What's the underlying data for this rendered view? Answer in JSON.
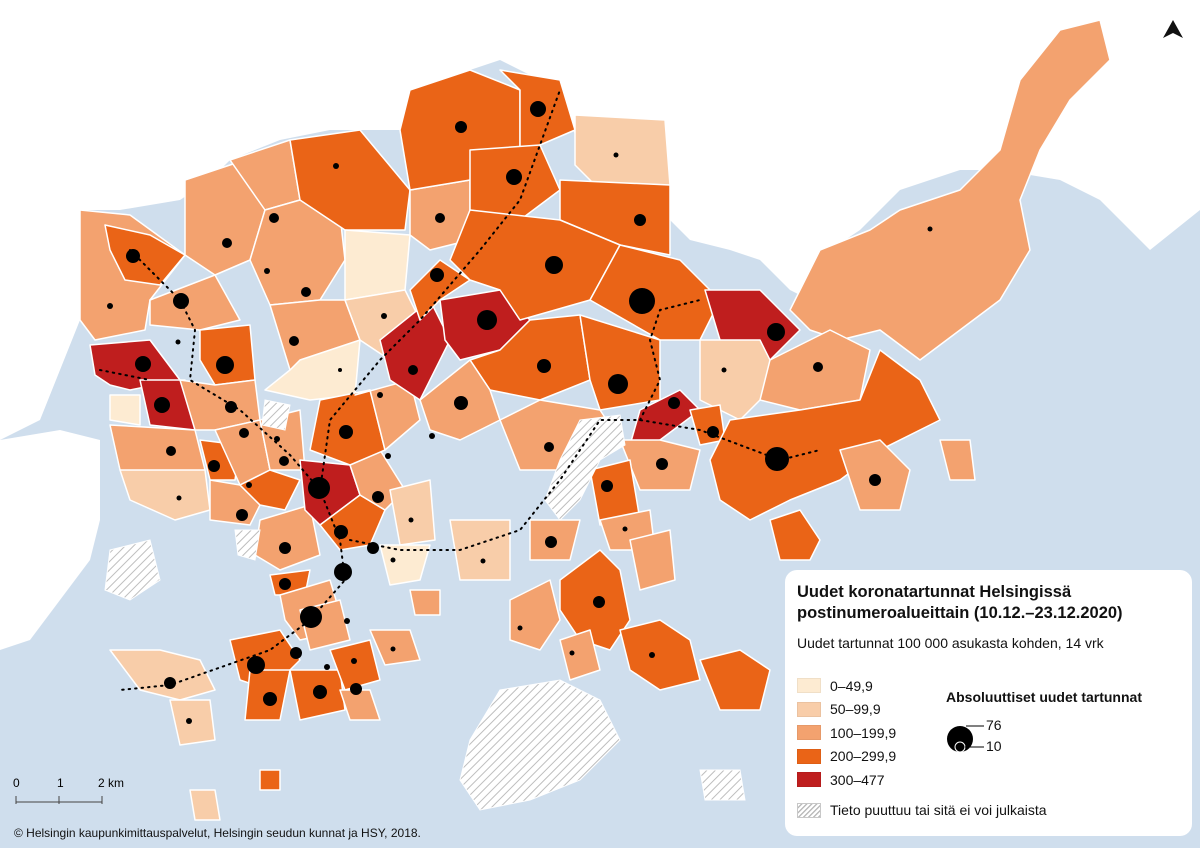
{
  "legend": {
    "title_line1": "Uudet koronatartunnat Helsingissä",
    "title_line2": "postinumeroalueittain (10.12.–23.12.2020)",
    "subtitle": "Uudet tartunnat 100 000 asukasta kohden, 14 vrk",
    "classes": [
      {
        "label": "0–49,9",
        "color": "#fdebd2"
      },
      {
        "label": "50–99,9",
        "color": "#f8cda9"
      },
      {
        "label": "100–199,9",
        "color": "#f3a26f"
      },
      {
        "label": "200–299,9",
        "color": "#ea6417"
      },
      {
        "label": "300–477",
        "color": "#bf1e1e"
      }
    ],
    "no_data_label": "Tieto puuttuu tai sitä ei voi julkaista",
    "abs_title": "Absoluuttiset uudet tartunnat",
    "abs_max": "76",
    "abs_min": "10"
  },
  "scale": {
    "t0": "0",
    "t1": "1",
    "t2": "2 km"
  },
  "copyright": "© Helsingin kaupunkimittauspalvelut, Helsingin seudun kunnat ja HSY, 2018.",
  "colors": {
    "sea": "#cfdeed",
    "land_outside": "#ffffff",
    "boundary": "#ffffff",
    "dot": "#000000"
  }
}
